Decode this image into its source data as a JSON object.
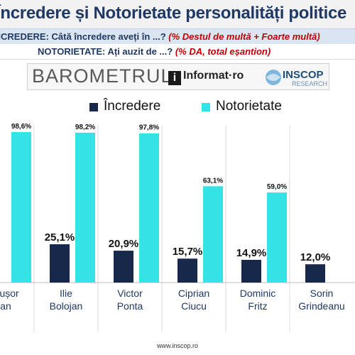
{
  "header": {
    "title": "Încredere și Notorietate personalități politice",
    "row1_label": "ÎNCREDERE:",
    "row1_question": "Câtă încredere aveți în ...?",
    "row1_note": "(% Destul de multă + Foarte multă)",
    "row2_label": "NOTORIETATE:",
    "row2_question": "Ați auzit de ...?",
    "row2_note": "(% DA, total eșantion)"
  },
  "branding": {
    "barometru": "BAROMETRUL",
    "informat": "Informat·ro",
    "informat_mark": "i",
    "inscop": "INSCOP",
    "inscop_sub": "RESEARCH"
  },
  "footer": {
    "url": "www.inscop.ro"
  },
  "colors": {
    "incredere": "#17284a",
    "notorietate": "#33e3e6",
    "title": "#1f3864",
    "note": "#c00000"
  },
  "chart_data": {
    "type": "bar",
    "title": "",
    "xlabel": "",
    "ylabel": "",
    "ylim": [
      0,
      105
    ],
    "grid": false,
    "legend": "top",
    "categories": [
      [
        "Nicușor",
        "Dan"
      ],
      [
        "Ilie",
        "Bolojan"
      ],
      [
        "Victor",
        "Ponta"
      ],
      [
        "Ciprian",
        "Ciucu"
      ],
      [
        "Dominic",
        "Fritz"
      ],
      [
        "Sorin",
        "Grindeanu"
      ]
    ],
    "series": [
      {
        "name": "Încredere",
        "values": [
          null,
          25.1,
          20.9,
          15.7,
          14.9,
          12.0
        ],
        "labels": [
          "",
          "25,1%",
          "20,9%",
          "15,7%",
          "14,9%",
          "12,0%"
        ]
      },
      {
        "name": "Notorietate",
        "values": [
          98.6,
          98.2,
          97.8,
          63.1,
          59.0,
          null
        ],
        "labels": [
          "98,6%",
          "98,2%",
          "97,8%",
          "63,1%",
          "59,0%",
          ""
        ]
      }
    ]
  }
}
